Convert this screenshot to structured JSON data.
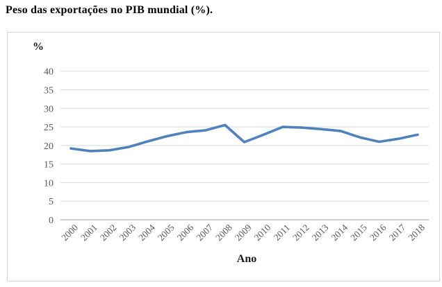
{
  "page": {
    "title": "Peso das exportações no PIB mundial (%)."
  },
  "chart_data": {
    "type": "line",
    "title": "Peso das exportações no PIB mundial (%).",
    "xlabel": "Ano",
    "ylabel": "%",
    "x": [
      2000,
      2001,
      2002,
      2003,
      2004,
      2005,
      2006,
      2007,
      2008,
      2009,
      2010,
      2011,
      2012,
      2013,
      2014,
      2015,
      2016,
      2017,
      2018
    ],
    "series": [
      {
        "name": "Peso das exportações no PIB mundial (%)",
        "values": [
          19.2,
          18.5,
          18.7,
          19.6,
          21.1,
          22.5,
          23.6,
          24.1,
          25.5,
          20.9,
          22.9,
          25.0,
          24.8,
          24.4,
          23.9,
          22.2,
          21.0,
          21.8,
          22.9
        ]
      }
    ],
    "ylim": [
      0,
      40
    ],
    "ytick_step": 5,
    "grid": true,
    "legend": "none",
    "colors": {
      "line": "#4F81BD",
      "gridline": "#d9d9d9",
      "axis_line": "#9e9e9e",
      "tick_label": "#595959",
      "frame_border": "#d6d6d6"
    }
  }
}
